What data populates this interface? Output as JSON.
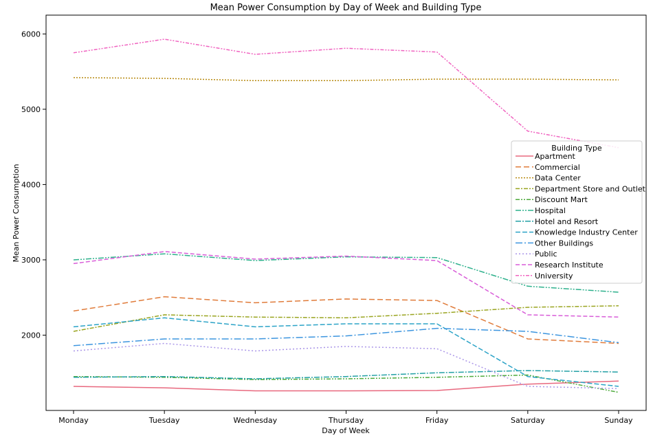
{
  "chart_data": {
    "type": "line",
    "title": "Mean Power Consumption by Day of Week and Building Type",
    "xlabel": "Day of Week",
    "ylabel": "Mean Power Consumption",
    "categories": [
      "Monday",
      "Tuesday",
      "Wednesday",
      "Thursday",
      "Friday",
      "Saturday",
      "Sunday"
    ],
    "ylim": [
      1000,
      6250
    ],
    "yticks": [
      2000,
      3000,
      4000,
      5000,
      6000
    ],
    "grid": false,
    "legend": {
      "title": "Building Type",
      "placement": "right"
    },
    "series": [
      {
        "name": "Apartment",
        "color": "#e8687e",
        "dash": "solid",
        "values": [
          1320,
          1300,
          1260,
          1260,
          1265,
          1350,
          1390
        ]
      },
      {
        "name": "Commercial",
        "color": "#e07b3a",
        "dash": "dashed",
        "values": [
          2320,
          2510,
          2430,
          2480,
          2460,
          1950,
          1890
        ]
      },
      {
        "name": "Data Center",
        "color": "#b7890e",
        "dash": "dotted",
        "values": [
          5420,
          5410,
          5380,
          5380,
          5400,
          5400,
          5390
        ]
      },
      {
        "name": "Department Store and Outlet",
        "color": "#99a41f",
        "dash": "dashdot",
        "values": [
          2050,
          2270,
          2240,
          2230,
          2290,
          2370,
          2390
        ]
      },
      {
        "name": "Discount Mart",
        "color": "#4daa3b",
        "dash": "dashdotdot",
        "values": [
          1450,
          1440,
          1410,
          1420,
          1440,
          1470,
          1240
        ]
      },
      {
        "name": "Hospital",
        "color": "#2cb08b",
        "dash": "dashdotdot2",
        "values": [
          3000,
          3080,
          2990,
          3040,
          3030,
          2650,
          2570
        ]
      },
      {
        "name": "Hotel and Resort",
        "color": "#22a0a5",
        "dash": "dashdot2",
        "values": [
          1440,
          1450,
          1420,
          1450,
          1500,
          1530,
          1510
        ]
      },
      {
        "name": "Knowledge Industry Center",
        "color": "#2ba3c7",
        "dash": "dashed2",
        "values": [
          2110,
          2230,
          2110,
          2150,
          2150,
          1450,
          1320
        ]
      },
      {
        "name": "Other Buildings",
        "color": "#3c95df",
        "dash": "dashdot3",
        "values": [
          1860,
          1950,
          1950,
          1990,
          2090,
          2050,
          1900
        ]
      },
      {
        "name": "Public",
        "color": "#a994e8",
        "dash": "dotted2",
        "values": [
          1790,
          1890,
          1790,
          1850,
          1820,
          1320,
          1290
        ]
      },
      {
        "name": "Research Institute",
        "color": "#d85cd8",
        "dash": "dashed3",
        "values": [
          2950,
          3110,
          3010,
          3050,
          2990,
          2270,
          2240
        ]
      },
      {
        "name": "University",
        "color": "#f063c0",
        "dash": "dashdotdot3",
        "values": [
          5750,
          5930,
          5730,
          5810,
          5760,
          4710,
          4490
        ]
      }
    ]
  }
}
